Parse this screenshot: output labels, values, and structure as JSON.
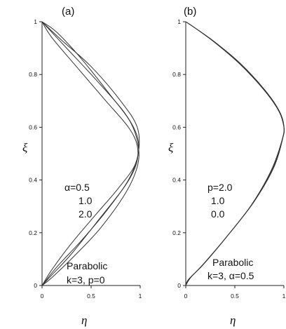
{
  "chart_data": [
    {
      "type": "line",
      "panel_label": "(a)",
      "xlabel": "η",
      "ylabel": "ξ",
      "xlim": [
        0,
        1
      ],
      "ylim": [
        0,
        1
      ],
      "xticks": [
        "0",
        "0.5",
        "1"
      ],
      "yticks": [
        "0",
        "0.2",
        "0.4",
        "0.6",
        "0.8",
        "1"
      ],
      "legend_lines": [
        "α=0.5",
        "1.0",
        "2.0"
      ],
      "annotation_lines": [
        "Parabolic",
        "k=3, p=0"
      ],
      "series": [
        {
          "values": [
            [
              0,
              1.0
            ],
            [
              0.15,
              0.96
            ],
            [
              0.4,
              0.86
            ],
            [
              0.7,
              0.72
            ],
            [
              0.9,
              0.62
            ],
            [
              0.98,
              0.53
            ],
            [
              0.97,
              0.45
            ],
            [
              0.85,
              0.35
            ],
            [
              0.6,
              0.22
            ],
            [
              0.35,
              0.12
            ],
            [
              0.1,
              0.03
            ],
            [
              0,
              0.0
            ]
          ]
        },
        {
          "values": [
            [
              0,
              1.0
            ],
            [
              0.2,
              0.93
            ],
            [
              0.5,
              0.83
            ],
            [
              0.8,
              0.7
            ],
            [
              0.97,
              0.6
            ],
            [
              0.98,
              0.5
            ],
            [
              0.88,
              0.4
            ],
            [
              0.65,
              0.28
            ],
            [
              0.4,
              0.17
            ],
            [
              0.15,
              0.07
            ],
            [
              0,
              0.0
            ]
          ]
        },
        {
          "values": [
            [
              0,
              1.0
            ],
            [
              0.25,
              0.9
            ],
            [
              0.55,
              0.78
            ],
            [
              0.85,
              0.65
            ],
            [
              0.98,
              0.55
            ],
            [
              0.95,
              0.46
            ],
            [
              0.78,
              0.37
            ],
            [
              0.55,
              0.27
            ],
            [
              0.3,
              0.16
            ],
            [
              0.1,
              0.06
            ],
            [
              0,
              0.0
            ]
          ]
        },
        {
          "values": [
            [
              0,
              1.0
            ],
            [
              0.1,
              0.94
            ],
            [
              0.35,
              0.83
            ],
            [
              0.65,
              0.7
            ],
            [
              0.88,
              0.6
            ],
            [
              0.97,
              0.53
            ],
            [
              0.96,
              0.46
            ],
            [
              0.85,
              0.38
            ],
            [
              0.6,
              0.26
            ],
            [
              0.3,
              0.12
            ],
            [
              0.1,
              0.04
            ],
            [
              0,
              0.0
            ]
          ]
        }
      ]
    },
    {
      "type": "line",
      "panel_label": "(b)",
      "xlabel": "η",
      "ylabel": "ξ",
      "xlim": [
        0,
        1
      ],
      "ylim": [
        0,
        1
      ],
      "xticks": [
        "0",
        "0.5",
        "1"
      ],
      "yticks": [
        "0",
        "0.2",
        "0.4",
        "0.6",
        "0.8",
        "1"
      ],
      "legend_lines": [
        "p=2.0",
        "1.0",
        "0.0"
      ],
      "annotation_lines": [
        "Parabolic",
        "k=3, α=0.5"
      ],
      "series": [
        {
          "values": [
            [
              0,
              1.0
            ],
            [
              0.1,
              0.975
            ],
            [
              0.3,
              0.92
            ],
            [
              0.55,
              0.84
            ],
            [
              0.8,
              0.74
            ],
            [
              0.95,
              0.66
            ],
            [
              1.0,
              0.6
            ],
            [
              0.99,
              0.56
            ],
            [
              0.9,
              0.45
            ],
            [
              0.7,
              0.32
            ],
            [
              0.45,
              0.2
            ],
            [
              0.2,
              0.09
            ],
            [
              0.05,
              0.03
            ],
            [
              0,
              0.0
            ]
          ]
        },
        {
          "values": [
            [
              0,
              1.0
            ],
            [
              0.1,
              0.975
            ],
            [
              0.3,
              0.921
            ],
            [
              0.55,
              0.842
            ],
            [
              0.8,
              0.742
            ],
            [
              0.95,
              0.662
            ],
            [
              1.0,
              0.603
            ],
            [
              0.985,
              0.555
            ],
            [
              0.885,
              0.443
            ],
            [
              0.685,
              0.313
            ],
            [
              0.435,
              0.193
            ],
            [
              0.19,
              0.085
            ],
            [
              0.04,
              0.027
            ],
            [
              0,
              0.0
            ]
          ]
        },
        {
          "values": [
            [
              0,
              1.0
            ],
            [
              0.1,
              0.975
            ],
            [
              0.3,
              0.922
            ],
            [
              0.55,
              0.844
            ],
            [
              0.8,
              0.744
            ],
            [
              0.95,
              0.664
            ],
            [
              1.0,
              0.606
            ],
            [
              0.98,
              0.55
            ],
            [
              0.87,
              0.436
            ],
            [
              0.67,
              0.306
            ],
            [
              0.42,
              0.186
            ],
            [
              0.18,
              0.08
            ],
            [
              0.03,
              0.024
            ],
            [
              0,
              0.0
            ]
          ]
        }
      ]
    }
  ]
}
